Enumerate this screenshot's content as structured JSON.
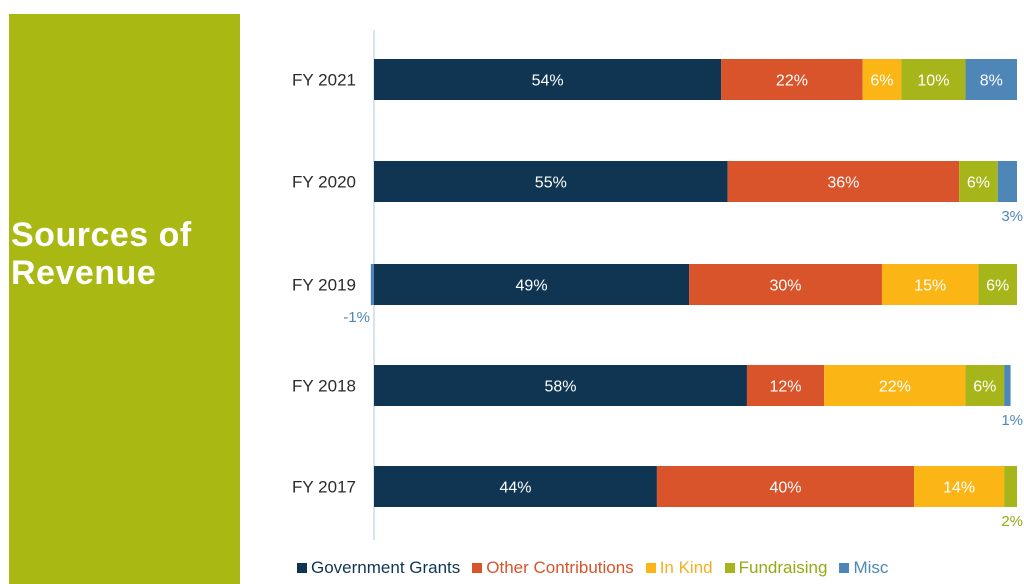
{
  "sidebar": {
    "title_line1": "Sources of",
    "title_line2": "Revenue"
  },
  "chart_data": {
    "type": "bar",
    "orientation": "horizontal",
    "stacked": true,
    "title": "Sources of Revenue",
    "xlabel": "",
    "ylabel": "",
    "categories": [
      "FY 2021",
      "FY 2020",
      "FY 2019",
      "FY 2018",
      "FY 2017"
    ],
    "series": [
      {
        "name": "Government Grants",
        "color": "#0f3553",
        "text_color": "#0f3553",
        "values": [
          54,
          55,
          49,
          58,
          44
        ],
        "labels": [
          "54%",
          "55%",
          "49%",
          "58%",
          "44%"
        ]
      },
      {
        "name": "Other Contributions",
        "color": "#d9532b",
        "text_color": "#d9532b",
        "values": [
          22,
          36,
          30,
          12,
          40
        ],
        "labels": [
          "22%",
          "36%",
          "30%",
          "12%",
          "40%"
        ]
      },
      {
        "name": "In Kind",
        "color": "#fbb514",
        "text_color": "#f5b020",
        "values": [
          6,
          0,
          15,
          22,
          14
        ],
        "labels": [
          "6%",
          "",
          "15%",
          "22%",
          "14%"
        ]
      },
      {
        "name": "Fundraising",
        "color": "#a6b61a",
        "text_color": "#97a814",
        "values": [
          10,
          6,
          6,
          6,
          2
        ],
        "labels": [
          "10%",
          "6%",
          "6%",
          "6%",
          "2%"
        ]
      },
      {
        "name": "Misc",
        "color": "#4f86b8",
        "text_color": "#4f86b8",
        "values": [
          8,
          3,
          -1,
          1,
          0
        ],
        "labels": [
          "8%",
          "3%",
          "-1%",
          "1%",
          ""
        ]
      }
    ],
    "legend_position": "bottom",
    "grid": false
  }
}
